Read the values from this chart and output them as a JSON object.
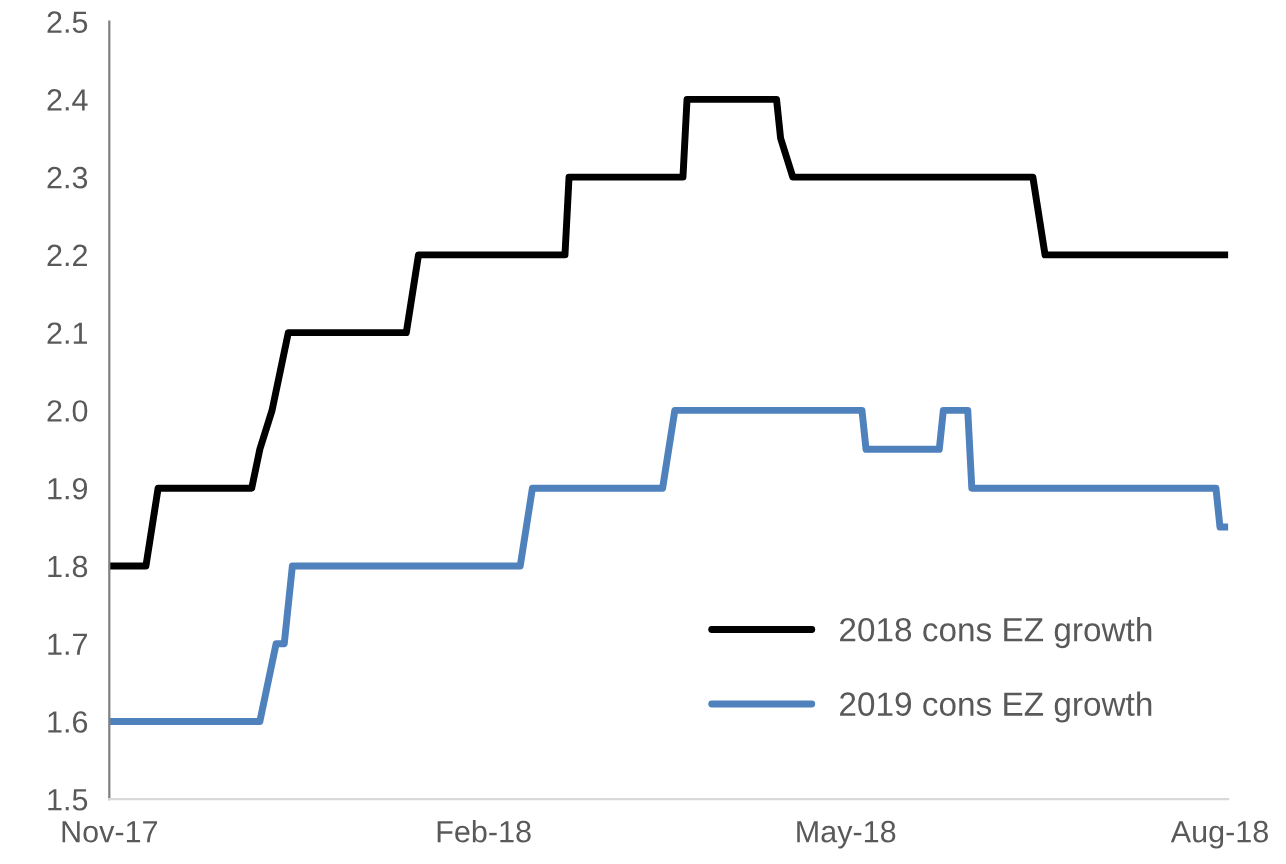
{
  "chart_data": {
    "type": "line",
    "x": [
      "2017-11-01",
      "2017-11-10",
      "2017-11-13",
      "2017-12-06",
      "2017-12-08",
      "2017-12-11",
      "2017-12-13",
      "2017-12-15",
      "2017-12-16",
      "2018-01-13",
      "2018-01-16",
      "2018-02-21",
      "2018-02-22",
      "2018-03-22",
      "2018-03-23",
      "2018-04-14",
      "2018-04-15",
      "2018-04-18",
      "2018-06-16",
      "2018-06-19",
      "2018-08-03"
    ],
    "series": [
      {
        "name": "2018 cons EZ growth",
        "color": "#000000",
        "values": [
          1.8,
          1.8,
          1.9,
          1.9,
          1.95,
          2.0,
          2.05,
          2.1,
          2.1,
          2.1,
          2.2,
          2.2,
          2.3,
          2.3,
          2.4,
          2.4,
          2.35,
          2.3,
          2.3,
          2.2,
          2.2
        ]
      },
      {
        "name": "2019 cons EZ growth",
        "color": "#4f81bd",
        "x": [
          "2017-11-01",
          "2017-12-08",
          "2017-12-12",
          "2017-12-14",
          "2017-12-16",
          "2018-02-10",
          "2018-02-13",
          "2018-03-17",
          "2018-03-20",
          "2018-05-05",
          "2018-05-06",
          "2018-05-24",
          "2018-05-25",
          "2018-05-31",
          "2018-06-01",
          "2018-07-31",
          "2018-08-01",
          "2018-08-03"
        ],
        "values": [
          1.6,
          1.6,
          1.7,
          1.7,
          1.8,
          1.8,
          1.9,
          1.9,
          2.0,
          2.0,
          1.95,
          1.95,
          2.0,
          2.0,
          1.9,
          1.9,
          1.85,
          1.85
        ]
      }
    ],
    "xlim": [
      "2017-11-01",
      "2018-08-03"
    ],
    "xticks": [
      {
        "value": "2017-11-01",
        "label": "Nov-17"
      },
      {
        "value": "2018-02-01",
        "label": "Feb-18"
      },
      {
        "value": "2018-05-01",
        "label": "May-18"
      },
      {
        "value": "2018-08-01",
        "label": "Aug-18"
      }
    ],
    "ylim": [
      1.5,
      2.5
    ],
    "yticks": [
      {
        "value": 1.5,
        "label": "1.5"
      },
      {
        "value": 1.6,
        "label": "1.6"
      },
      {
        "value": 1.7,
        "label": "1.7"
      },
      {
        "value": 1.8,
        "label": "1.8"
      },
      {
        "value": 1.9,
        "label": "1.9"
      },
      {
        "value": 2.0,
        "label": "2.0"
      },
      {
        "value": 2.1,
        "label": "2.1"
      },
      {
        "value": 2.2,
        "label": "2.2"
      },
      {
        "value": 2.3,
        "label": "2.3"
      },
      {
        "value": 2.4,
        "label": "2.4"
      },
      {
        "value": 2.5,
        "label": "2.5"
      }
    ],
    "grid": false,
    "legend": "bottom right",
    "marker": "none",
    "line_style": "solid"
  }
}
